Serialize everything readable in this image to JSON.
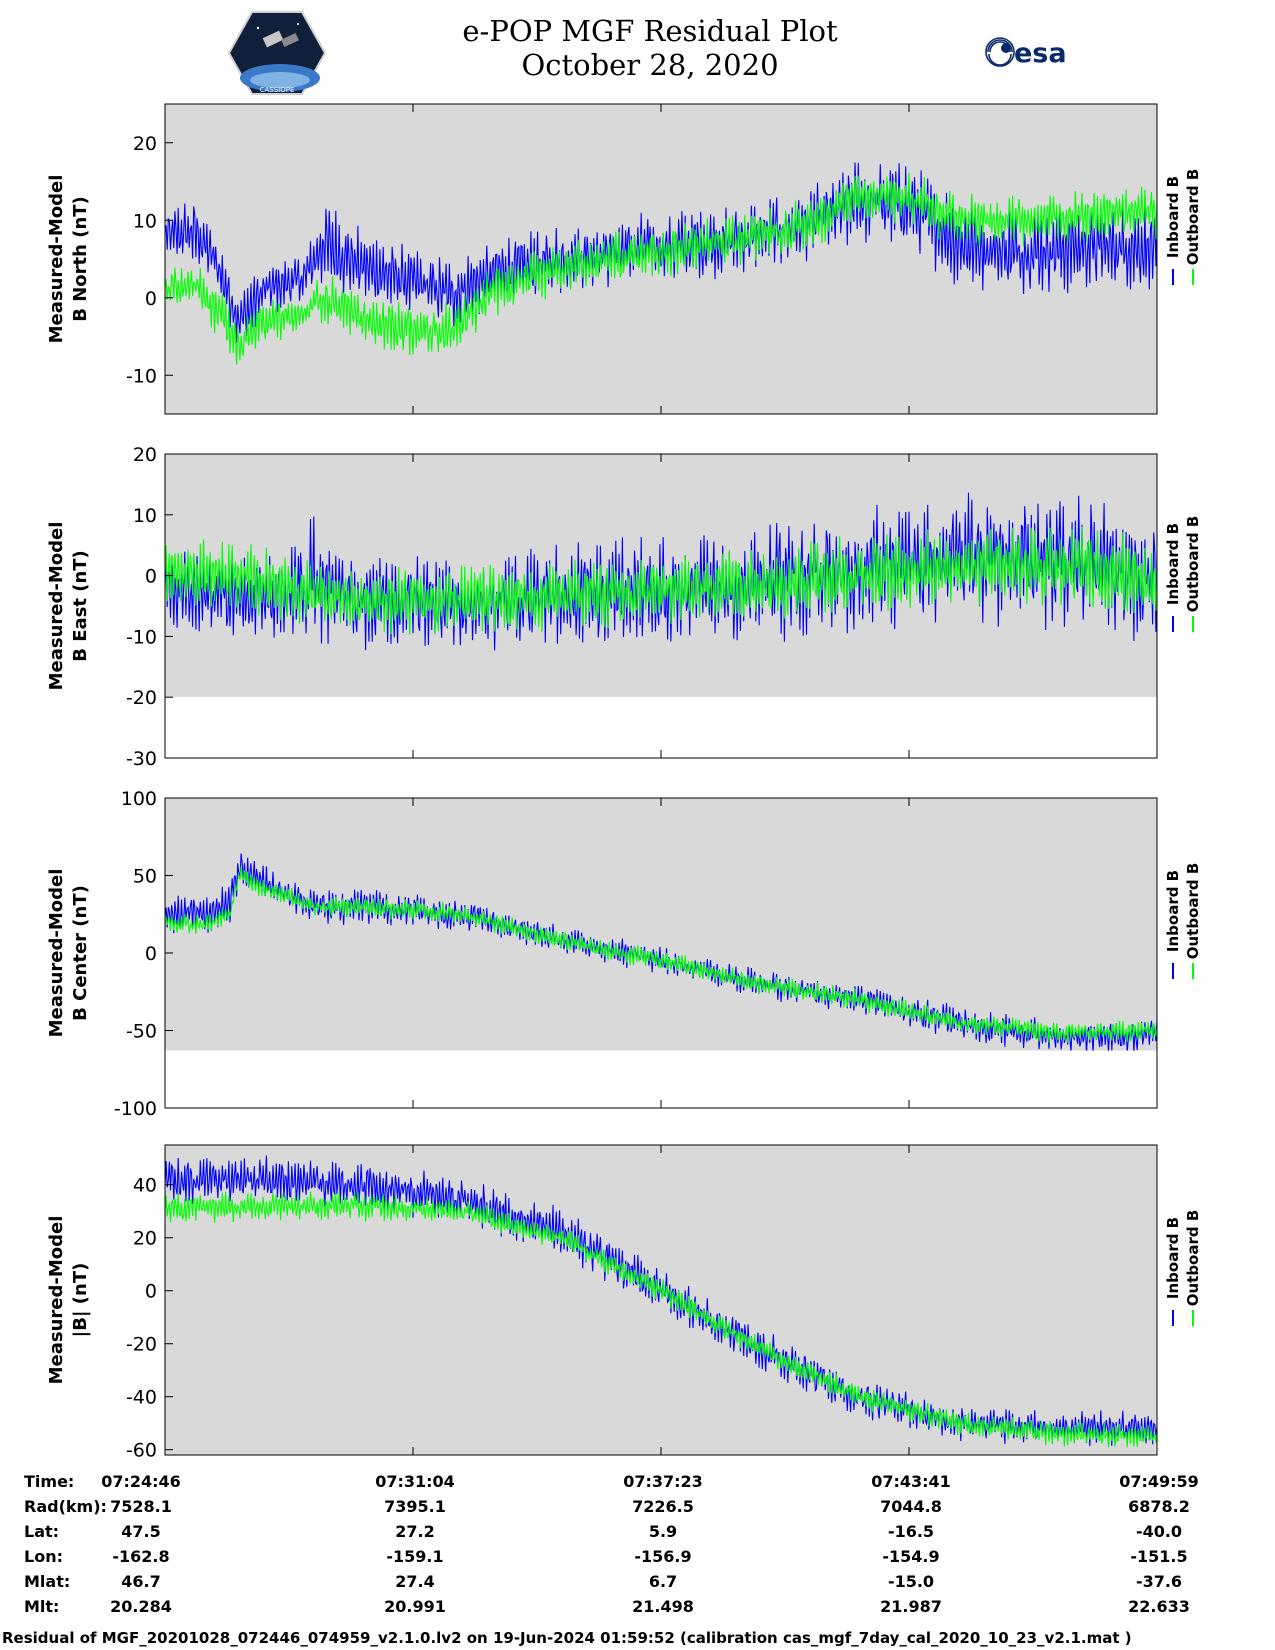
{
  "header": {
    "title": "e-POP MGF Residual Plot",
    "date": "October 28, 2020",
    "left_logo_text": "CASSIOPE",
    "right_logo_text": "esa"
  },
  "chart_data": [
    {
      "type": "line",
      "ylabel": [
        "Measured-Model",
        "B North (nT)"
      ],
      "ylim": [
        -15,
        25
      ],
      "yticks": [
        20,
        10,
        0,
        -10
      ],
      "clip": null,
      "legend": [
        "Inboard B",
        "Outboard B"
      ],
      "legend_placement": "right",
      "series": [
        {
          "name": "Inboard B",
          "color": "#0000ff",
          "x_frac": [
            0,
            0.03,
            0.05,
            0.075,
            0.1,
            0.14,
            0.16,
            0.2,
            0.25,
            0.29,
            0.33,
            0.4,
            0.45,
            0.5,
            0.55,
            0.6,
            0.65,
            0.7,
            0.75,
            0.78,
            0.8,
            0.84,
            0.88,
            0.92,
            0.96,
            1.0
          ],
          "center": [
            8,
            8.5,
            5,
            -3,
            1,
            2.5,
            7,
            4,
            2,
            0.5,
            3,
            5,
            6,
            6.5,
            7,
            8,
            9.5,
            12.5,
            12,
            9,
            7,
            6,
            6,
            6.5,
            6.5,
            6.5
          ],
          "amp": [
            3,
            4,
            3,
            4,
            3,
            3,
            5,
            4,
            4,
            4,
            4,
            4,
            4,
            4,
            4,
            4,
            4,
            5,
            5,
            5,
            5,
            5,
            5,
            5,
            5,
            5
          ]
        },
        {
          "name": "Outboard B",
          "color": "#00ff00",
          "x_frac": [
            0,
            0.03,
            0.05,
            0.075,
            0.1,
            0.14,
            0.16,
            0.2,
            0.25,
            0.29,
            0.33,
            0.4,
            0.45,
            0.5,
            0.55,
            0.6,
            0.65,
            0.7,
            0.75,
            0.78,
            0.8,
            0.84,
            0.88,
            0.92,
            0.96,
            1.0
          ],
          "center": [
            1,
            2,
            -1,
            -6,
            -3,
            -2,
            0,
            -3,
            -4,
            -4,
            1,
            4,
            5,
            6,
            7,
            8,
            9.5,
            13,
            13,
            11,
            10,
            10,
            10,
            10.5,
            11,
            11
          ],
          "amp": [
            2.5,
            3,
            3,
            3,
            2.5,
            2.5,
            3,
            3,
            3,
            3,
            3,
            3,
            3,
            3,
            3,
            3,
            3,
            3,
            3,
            3,
            3,
            3,
            3,
            3,
            3,
            3
          ]
        }
      ]
    },
    {
      "type": "line",
      "ylabel": [
        "Measured-Model",
        "B East (nT)"
      ],
      "ylim": [
        -30,
        20
      ],
      "yticks": [
        20,
        10,
        0,
        -10,
        -20,
        -30
      ],
      "clip": -20,
      "legend": [
        "Inboard B",
        "Outboard B"
      ],
      "legend_placement": "right",
      "series": [
        {
          "name": "Inboard B",
          "color": "#0000ff",
          "x_frac": [
            0,
            0.075,
            0.15,
            0.2,
            0.3,
            0.35,
            0.45,
            0.55,
            0.65,
            0.75,
            0.85,
            0.95,
            1.0
          ],
          "center": [
            -2,
            -4,
            -1,
            -4,
            -5,
            -4,
            -3,
            -2,
            0,
            2,
            3,
            2,
            0
          ],
          "amp": [
            6,
            6,
            9,
            7,
            7,
            7,
            8,
            8,
            9,
            9,
            10,
            10,
            10
          ]
        },
        {
          "name": "Outboard B",
          "color": "#00ff00",
          "x_frac": [
            0,
            0.075,
            0.15,
            0.2,
            0.3,
            0.35,
            0.45,
            0.55,
            0.65,
            0.75,
            0.85,
            0.95,
            1.0
          ],
          "center": [
            0,
            0,
            -3,
            -4,
            -4,
            -4,
            -3,
            -2,
            -1,
            1,
            2,
            1,
            -2
          ],
          "amp": [
            5,
            5,
            5,
            5,
            5,
            5,
            5,
            5,
            6,
            6,
            6,
            6,
            6
          ]
        }
      ]
    },
    {
      "type": "line",
      "ylabel": [
        "Measured-Model",
        "B Center (nT)"
      ],
      "ylim": [
        -100,
        100
      ],
      "yticks": [
        100,
        50,
        0,
        -50,
        -100
      ],
      "clip": -63,
      "legend": [
        "Inboard B",
        "Outboard B"
      ],
      "legend_placement": "right",
      "series": [
        {
          "name": "Inboard B",
          "color": "#0000ff",
          "x_frac": [
            0,
            0.04,
            0.065,
            0.075,
            0.1,
            0.15,
            0.2,
            0.3,
            0.4,
            0.5,
            0.6,
            0.7,
            0.8,
            0.9,
            1.0
          ],
          "center": [
            25,
            25,
            30,
            55,
            45,
            30,
            30,
            25,
            8,
            -5,
            -20,
            -30,
            -45,
            -55,
            -52
          ],
          "amp": [
            10,
            12,
            12,
            12,
            10,
            10,
            10,
            10,
            8,
            8,
            8,
            8,
            10,
            10,
            10
          ]
        },
        {
          "name": "Outboard B",
          "color": "#00ff00",
          "x_frac": [
            0,
            0.04,
            0.065,
            0.075,
            0.1,
            0.15,
            0.2,
            0.3,
            0.4,
            0.5,
            0.6,
            0.7,
            0.8,
            0.9,
            1.0
          ],
          "center": [
            20,
            18,
            25,
            50,
            42,
            30,
            30,
            25,
            8,
            -5,
            -20,
            -30,
            -45,
            -52,
            -50
          ],
          "amp": [
            6,
            6,
            6,
            6,
            6,
            6,
            6,
            6,
            6,
            6,
            6,
            6,
            6,
            6,
            6
          ]
        }
      ]
    },
    {
      "type": "line",
      "ylabel": [
        "Measured-Model",
        "|B| (nT)"
      ],
      "ylim": [
        -62,
        55
      ],
      "yticks": [
        40,
        20,
        0,
        -20,
        -40,
        -60
      ],
      "clip": null,
      "legend": [
        "Inboard B",
        "Outboard B"
      ],
      "legend_placement": "right",
      "series": [
        {
          "name": "Inboard B",
          "color": "#0000ff",
          "x_frac": [
            0,
            0.1,
            0.2,
            0.3,
            0.4,
            0.5,
            0.6,
            0.7,
            0.8,
            0.9,
            1.0
          ],
          "center": [
            42,
            42,
            40,
            34,
            22,
            0,
            -22,
            -40,
            -50,
            -52,
            -52
          ],
          "amp": [
            8,
            8,
            8,
            8,
            8,
            7,
            7,
            7,
            6,
            6,
            6
          ]
        },
        {
          "name": "Outboard B",
          "color": "#00ff00",
          "x_frac": [
            0,
            0.1,
            0.2,
            0.3,
            0.4,
            0.5,
            0.6,
            0.7,
            0.8,
            0.9,
            1.0
          ],
          "center": [
            31,
            32,
            32,
            30,
            20,
            0,
            -22,
            -40,
            -50,
            -54,
            -55
          ],
          "amp": [
            5,
            5,
            5,
            4,
            4,
            4,
            4,
            4,
            4,
            4,
            4
          ]
        }
      ]
    }
  ],
  "annotations": {
    "row_labels": [
      "Time:",
      "Rad(km):",
      "Lat:",
      "Lon:",
      "Mlat:",
      "Mlt:"
    ],
    "columns": [
      [
        "07:24:46",
        "7528.1",
        "47.5",
        "-162.8",
        "46.7",
        "20.284"
      ],
      [
        "07:31:04",
        "7395.1",
        "27.2",
        "-159.1",
        "27.4",
        "20.991"
      ],
      [
        "07:37:23",
        "7226.5",
        "5.9",
        "-156.9",
        "6.7",
        "21.498"
      ],
      [
        "07:43:41",
        "7044.8",
        "-16.5",
        "-154.9",
        "-15.0",
        "21.987"
      ],
      [
        "07:49:59",
        "6878.2",
        "-40.0",
        "-151.5",
        "-37.6",
        "22.633"
      ]
    ]
  },
  "footer": "Residual of MGF_20201028_072446_074959_v2.1.0.lv2 on 19-Jun-2024 01:59:52 (calibration cas_mgf_7day_cal_2020_10_23_v2.1.mat )"
}
